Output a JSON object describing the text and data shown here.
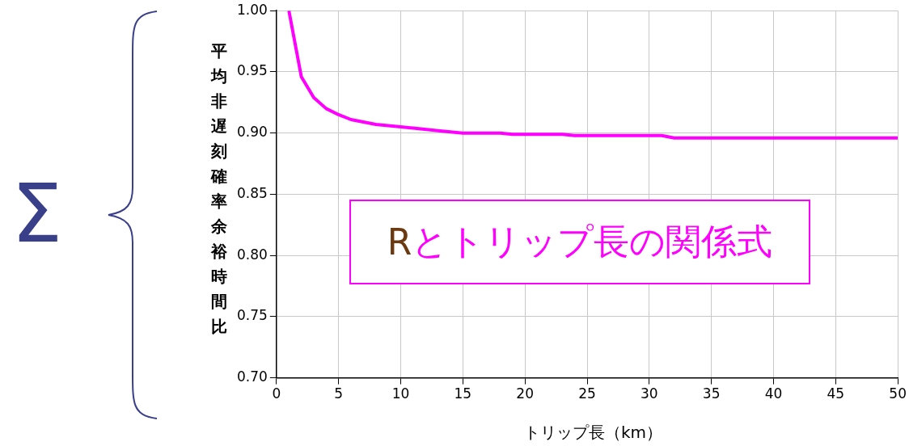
{
  "chart_data": {
    "type": "line",
    "xlabel": "トリップ長（km）",
    "ylabel": "平均非遅刻確率余裕時間比",
    "annotations": [
      "Rとトリップ長の関係式",
      "Σ"
    ],
    "x": [
      1,
      2,
      3,
      4,
      5,
      6,
      8,
      10,
      11,
      13,
      14,
      15,
      18,
      19,
      23,
      24,
      31,
      32,
      50
    ],
    "series": [
      {
        "color": "#ff00ff",
        "values": [
          1.0,
          0.946,
          0.929,
          0.92,
          0.915,
          0.911,
          0.907,
          0.905,
          0.904,
          0.902,
          0.901,
          0.9,
          0.9,
          0.899,
          0.899,
          0.898,
          0.898,
          0.896,
          0.896
        ]
      }
    ],
    "xlim": [
      0,
      50
    ],
    "xticks": [
      0,
      5,
      10,
      15,
      20,
      25,
      30,
      35,
      40,
      45,
      50
    ],
    "ylim": [
      0.7,
      1.0
    ],
    "yticks": [
      {
        "value": 0.7,
        "label": "0.70"
      },
      {
        "value": 0.75,
        "label": "0.75"
      },
      {
        "value": 0.8,
        "label": "0.80"
      },
      {
        "value": 0.85,
        "label": "0.85"
      },
      {
        "value": 0.9,
        "label": "0.90"
      },
      {
        "value": 0.95,
        "label": "0.95"
      },
      {
        "value": 1.0,
        "label": "1.00"
      }
    ],
    "grid": true,
    "legend": false,
    "marker": "none",
    "line_style": "solid"
  }
}
